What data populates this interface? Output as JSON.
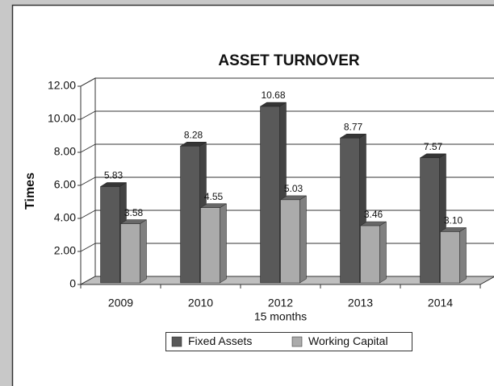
{
  "chart_data": {
    "type": "bar3d",
    "title": "ASSET TURNOVER",
    "y_label": "Times",
    "categories": [
      "2009",
      "2010",
      "2012",
      "2013",
      "2014"
    ],
    "annotations": [
      "15 months"
    ],
    "series": [
      {
        "name": "Fixed Assets",
        "color": "#595959",
        "values": [
          5.83,
          8.28,
          10.68,
          8.77,
          7.57
        ],
        "value_labels": [
          "5.83",
          "8.28",
          "10.68",
          "8.77",
          "7.57"
        ]
      },
      {
        "name": "Working Capital",
        "color": "#ababab",
        "values": [
          3.58,
          4.55,
          5.03,
          3.46,
          3.1
        ],
        "value_labels": [
          "3.58",
          "4.55",
          "5.03",
          "3.46",
          "3.10"
        ]
      }
    ],
    "ylim": [
      0,
      12
    ],
    "yticks": [
      0,
      {
        "value": 2,
        "label": "2.00"
      },
      {
        "value": 4,
        "label": "4.00"
      },
      {
        "value": 6,
        "label": "6.00"
      },
      {
        "value": 8,
        "label": "8.00"
      },
      {
        "value": 10,
        "label": "10.00"
      },
      {
        "value": 12,
        "label": "12.00"
      }
    ],
    "grid": true,
    "legend": "bottom"
  }
}
